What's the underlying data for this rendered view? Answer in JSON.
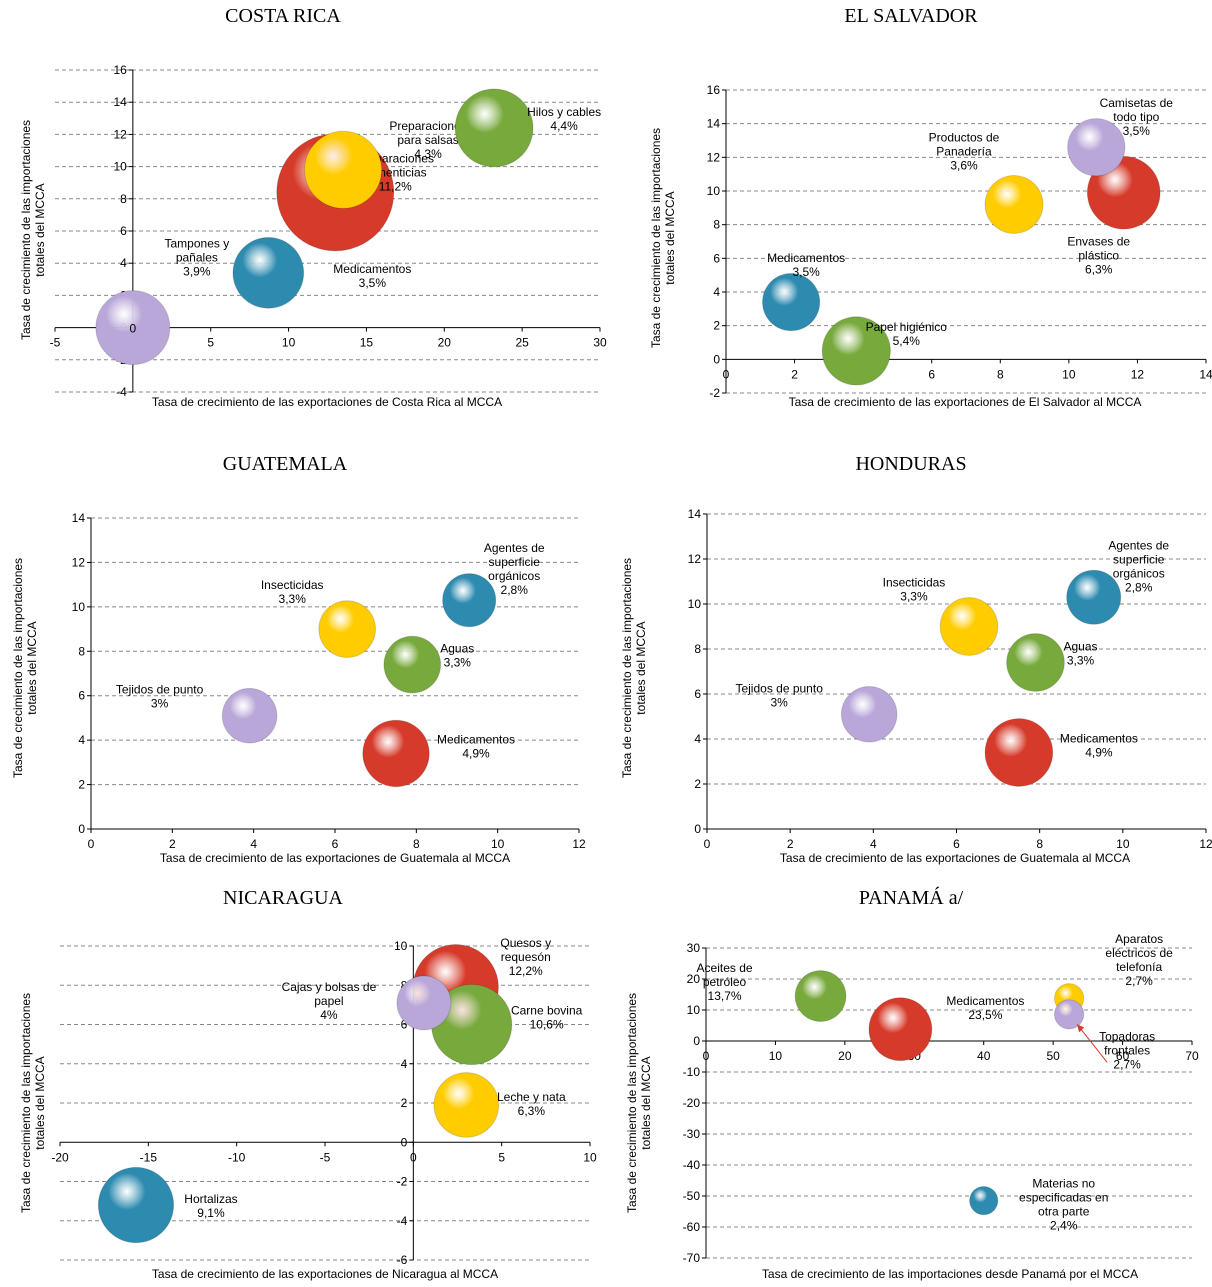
{
  "palette": {
    "blue": "#2e8bb0",
    "red": "#d63a2a",
    "green": "#77a93c",
    "yellow": "#ffcc00",
    "purple": "#b9a7d9",
    "grid": "#888888",
    "axis": "#000000"
  },
  "chart_data": [
    {
      "type": "scatter",
      "title": "COSTA RICA",
      "xlabel": "Tasa de crecimiento de las exportaciones de Costa Rica al MCCA",
      "ylabel": "Tasa de crecimiento de las importaciones totales del MCCA",
      "xlim": [
        -5,
        30
      ],
      "ylim": [
        -4,
        16
      ],
      "xstep": 5,
      "ystep": 2,
      "grid": "horizontal-dashed",
      "points": [
        {
          "name": "Preparaciones alimenticias",
          "label": [
            "Preparaciones",
            "alimenticias",
            "11,2%"
          ],
          "x": 13,
          "y": 8.4,
          "size": 11.2,
          "color": "red"
        },
        {
          "name": "Preparaciones para salsas",
          "label": [
            "Preparaciones",
            "para salsas",
            "4,3%"
          ],
          "x": 13.5,
          "y": 9.8,
          "size": 4.3,
          "color": "yellow"
        },
        {
          "name": "Hilos y cables",
          "label": [
            "Hilos y cables",
            "4,4%"
          ],
          "x": 23.2,
          "y": 12.4,
          "size": 4.4,
          "color": "green"
        },
        {
          "name": "Medicamentos",
          "label": [
            "Medicamentos",
            "3,5%"
          ],
          "x": 8.7,
          "y": 3.4,
          "size": 3.5,
          "color": "blue"
        },
        {
          "name": "Tampones y pañales",
          "label": [
            "Tampones y",
            "pañales",
            "3,9%"
          ],
          "x": 0,
          "y": 0,
          "size": 3.9,
          "color": "purple",
          "value_label": "0"
        }
      ]
    },
    {
      "type": "scatter",
      "title": "EL SALVADOR",
      "xlabel": "Tasa de crecimiento de las exportaciones de El Salvador al MCCA",
      "ylabel": "Tasa de crecimiento de las importaciones totales del MCCA",
      "xlim": [
        0,
        14
      ],
      "ylim": [
        -2,
        16
      ],
      "xstep": 2,
      "ystep": 2,
      "grid": "horizontal-dashed",
      "points": [
        {
          "name": "Envases de plástico",
          "label": [
            "Envases de",
            "plástico",
            "6,3%"
          ],
          "x": 11.6,
          "y": 9.9,
          "size": 6.3,
          "color": "red"
        },
        {
          "name": "Camisetas de todo tipo",
          "label": [
            "Camisetas de",
            "todo tipo",
            "3,5%"
          ],
          "x": 10.8,
          "y": 12.6,
          "size": 3.5,
          "color": "purple"
        },
        {
          "name": "Productos de Panadería",
          "label": [
            "Productos de",
            "Panadería",
            "3,6%"
          ],
          "x": 8.4,
          "y": 9.2,
          "size": 3.6,
          "color": "yellow"
        },
        {
          "name": "Medicamentos",
          "label": [
            "Medicamentos",
            "3,5%"
          ],
          "x": 1.9,
          "y": 3.4,
          "size": 3.5,
          "color": "blue"
        },
        {
          "name": "Papel higiénico",
          "label": [
            "Papel higiénico",
            "5,4%"
          ],
          "x": 3.8,
          "y": 0.5,
          "size": 5.4,
          "color": "green"
        }
      ]
    },
    {
      "type": "scatter",
      "title": "GUATEMALA",
      "xlabel": "Tasa de crecimiento de las exportaciones de Guatemala  al MCCA",
      "ylabel": "Tasa de crecimiento de las importaciones totales del MCCA",
      "xlim": [
        0,
        12
      ],
      "ylim": [
        0,
        14
      ],
      "xstep": 2,
      "ystep": 2,
      "grid": "horizontal-dashed",
      "points": [
        {
          "name": "Agentes de superficie orgánicos",
          "label": [
            "Agentes de",
            "superficie",
            "orgánicos",
            "2,8%"
          ],
          "x": 9.3,
          "y": 10.3,
          "size": 2.8,
          "color": "blue"
        },
        {
          "name": "Insecticidas",
          "label": [
            "Insecticidas",
            "3,3%"
          ],
          "x": 6.3,
          "y": 9.0,
          "size": 3.3,
          "color": "yellow"
        },
        {
          "name": "Aguas",
          "label": [
            "Aguas",
            "3,3%"
          ],
          "x": 7.9,
          "y": 7.4,
          "size": 3.3,
          "color": "green"
        },
        {
          "name": "Tejidos de punto",
          "label": [
            "Tejidos de punto",
            "3%"
          ],
          "x": 3.9,
          "y": 5.1,
          "size": 3.0,
          "color": "purple"
        },
        {
          "name": "Medicamentos",
          "label": [
            "Medicamentos",
            "4,9%"
          ],
          "x": 7.5,
          "y": 3.4,
          "size": 4.9,
          "color": "red"
        }
      ]
    },
    {
      "type": "scatter",
      "title": "HONDURAS",
      "xlabel": "Tasa de crecimiento de las exportaciones de Guatemala  al MCCA",
      "ylabel": "Tasa de crecimiento de las importaciones totales del MCCA",
      "xlim": [
        0,
        12
      ],
      "ylim": [
        0,
        14
      ],
      "xstep": 2,
      "ystep": 2,
      "grid": "horizontal-dashed",
      "points": [
        {
          "name": "Agentes de superficie orgánicos",
          "label": [
            "Agentes de",
            "superficie",
            "orgánicos",
            "2,8%"
          ],
          "x": 9.3,
          "y": 10.3,
          "size": 2.8,
          "color": "blue"
        },
        {
          "name": "Insecticidas",
          "label": [
            "Insecticidas",
            "3,3%"
          ],
          "x": 6.3,
          "y": 9.0,
          "size": 3.3,
          "color": "yellow"
        },
        {
          "name": "Aguas",
          "label": [
            "Aguas",
            "3,3%"
          ],
          "x": 7.9,
          "y": 7.4,
          "size": 3.3,
          "color": "green"
        },
        {
          "name": "Tejidos de punto",
          "label": [
            "Tejidos de punto",
            "3%"
          ],
          "x": 3.9,
          "y": 5.1,
          "size": 3.0,
          "color": "purple"
        },
        {
          "name": "Medicamentos",
          "label": [
            "Medicamentos",
            "4,9%"
          ],
          "x": 7.5,
          "y": 3.4,
          "size": 4.9,
          "color": "red"
        }
      ]
    },
    {
      "type": "scatter",
      "title": "NICARAGUA",
      "xlabel": "Tasa de crecimiento de las exportaciones de Nicaragua  al MCCA",
      "ylabel": "Tasa de crecimiento de las importaciones totales del MCCA",
      "xlim": [
        -20,
        10
      ],
      "ylim": [
        -6,
        10
      ],
      "xstep": 5,
      "ystep": 2,
      "grid": "horizontal-dashed",
      "points": [
        {
          "name": "Quesos y requesón",
          "label": [
            "Quesos y",
            "requesón",
            "12,2%"
          ],
          "x": 2.4,
          "y": 7.9,
          "size": 12.2,
          "color": "red"
        },
        {
          "name": "Carne bovina",
          "label": [
            "Carne bovina",
            "10,6%"
          ],
          "x": 3.3,
          "y": 6.0,
          "size": 10.6,
          "color": "green"
        },
        {
          "name": "Cajas y bolsas de papel",
          "label": [
            "Cajas y bolsas de",
            "papel",
            "4%"
          ],
          "x": 0.6,
          "y": 7.1,
          "size": 4.0,
          "color": "purple"
        },
        {
          "name": "Leche y nata",
          "label": [
            "Leche y nata",
            "6,3%"
          ],
          "x": 3.0,
          "y": 1.9,
          "size": 6.3,
          "color": "yellow"
        },
        {
          "name": "Hortalizas",
          "label": [
            "Hortalizas",
            "9,1%"
          ],
          "x": -15.7,
          "y": -3.2,
          "size": 9.1,
          "color": "blue"
        }
      ]
    },
    {
      "type": "scatter",
      "title": "PANAMÁ a/",
      "xlabel": "Tasa de crecimiento de las importaciones desde Panamá por el MCCA",
      "ylabel": "Tasa de crecimiento de las importaciones totales del MCCA",
      "xlim": [
        0,
        70
      ],
      "ylim": [
        -70,
        30
      ],
      "xstep": 10,
      "ystep": 10,
      "grid": "horizontal-dashed",
      "points": [
        {
          "name": "Aceites de petróleo",
          "label": [
            "Aceites de",
            "petróleo",
            "13,7%"
          ],
          "x": 16.5,
          "y": 14.5,
          "size": 13.7,
          "color": "green"
        },
        {
          "name": "Medicamentos",
          "label": [
            "Medicamentos",
            "23,5%"
          ],
          "x": 28,
          "y": 3.8,
          "size": 23.5,
          "color": "red"
        },
        {
          "name": "Aparatos eléctricos de telefonía",
          "label": [
            "Aparatos",
            "eléctricos de",
            "telefonía",
            "2,7%"
          ],
          "x": 52.3,
          "y": 13.8,
          "size": 2.7,
          "color": "yellow"
        },
        {
          "name": "Topadoras frontales",
          "label": [
            "Topadoras",
            "frontales",
            "2,7%"
          ],
          "x": 52.3,
          "y": 8.6,
          "size": 2.7,
          "color": "purple"
        },
        {
          "name": "Materias no especificadas en otra parte",
          "label": [
            "Materias no",
            "especificadas en",
            "otra parte",
            "2,4%"
          ],
          "x": 40,
          "y": -51.5,
          "size": 2.4,
          "color": "blue"
        }
      ]
    }
  ]
}
